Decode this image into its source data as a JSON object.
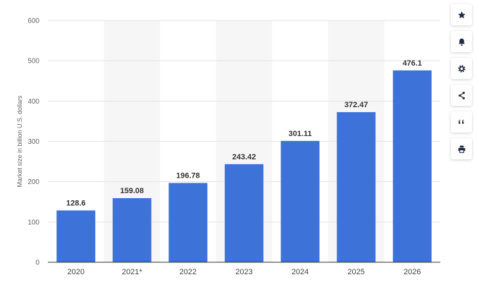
{
  "chart_data": {
    "type": "bar",
    "categories": [
      "2020",
      "2021*",
      "2022",
      "2023",
      "2024",
      "2025",
      "2026"
    ],
    "values": [
      128.6,
      159.08,
      196.78,
      243.42,
      301.11,
      372.47,
      476.1
    ],
    "value_labels": [
      "128.6",
      "159.08",
      "196.78",
      "243.42",
      "301.11",
      "372.47",
      "476.1"
    ],
    "title": "",
    "xlabel": "",
    "ylabel": "Market size in billion U.S. dollars",
    "ylim": [
      0,
      600
    ],
    "yticks": [
      0,
      100,
      200,
      300,
      400,
      500,
      600
    ],
    "grid": true,
    "bar_color": "#3d72d9",
    "band_color": "#f6f6f6"
  },
  "toolbar": {
    "buttons": [
      {
        "icon": "star-icon",
        "name": "favorite-button"
      },
      {
        "icon": "bell-icon",
        "name": "notification-button"
      },
      {
        "icon": "gear-icon",
        "name": "settings-button"
      },
      {
        "icon": "share-icon",
        "name": "share-button"
      },
      {
        "icon": "quote-icon",
        "name": "cite-button"
      },
      {
        "icon": "print-icon",
        "name": "print-button"
      }
    ]
  }
}
